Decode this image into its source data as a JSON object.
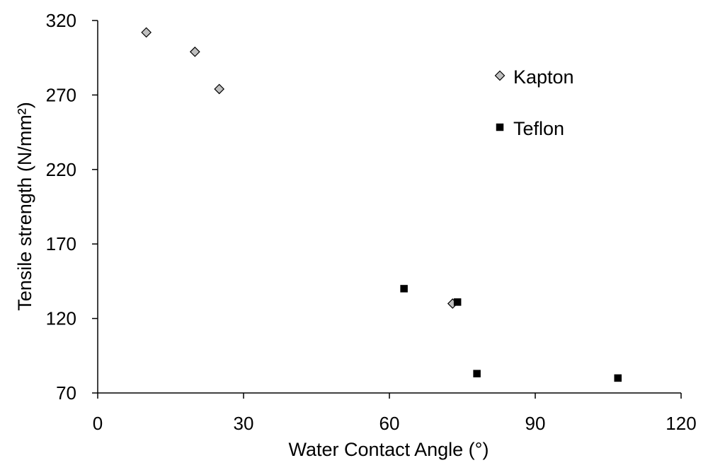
{
  "chart_data": {
    "type": "scatter",
    "title": "",
    "xlabel": "Water Contact Angle (°)",
    "ylabel": "Tensile strength (N/mm²)",
    "xlim": [
      0,
      120
    ],
    "ylim": [
      70,
      320
    ],
    "x_ticks": [
      "0",
      "30",
      "60",
      "90",
      "120"
    ],
    "y_ticks": [
      "70",
      "120",
      "170",
      "220",
      "270",
      "320"
    ],
    "grid": false,
    "legend_position": "top-right",
    "series": [
      {
        "name": "Kapton",
        "marker": "diamond",
        "color": "#bfbfbf",
        "points": [
          {
            "x": 10,
            "y": 312
          },
          {
            "x": 20,
            "y": 299
          },
          {
            "x": 25,
            "y": 274
          },
          {
            "x": 73,
            "y": 130
          }
        ]
      },
      {
        "name": "Teflon",
        "marker": "square",
        "color": "#000000",
        "points": [
          {
            "x": 63,
            "y": 140
          },
          {
            "x": 74,
            "y": 131
          },
          {
            "x": 78,
            "y": 83
          },
          {
            "x": 107,
            "y": 80
          }
        ]
      }
    ]
  }
}
